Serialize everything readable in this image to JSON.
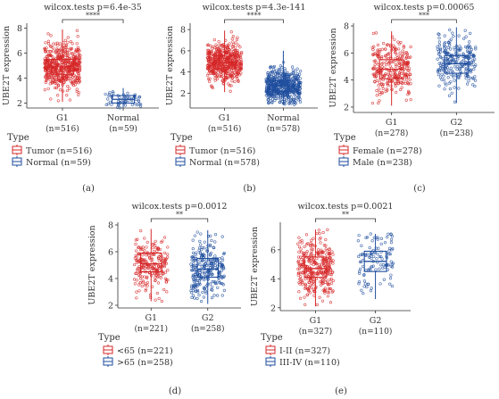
{
  "figure": {
    "panels_label": "(a) (b) (c) (d) (e)"
  },
  "colors": {
    "group1": "#d62728",
    "group2": "#1f4e9e",
    "axis": "#333333"
  },
  "chart_data": [
    {
      "type": "boxplot",
      "panel_label": "(a)",
      "title": "wilcox.tests p=6.4e-35",
      "ylabel": "UBE2T expression",
      "ylim": [
        1.6,
        8.4
      ],
      "yticks": [
        2,
        4,
        6,
        8
      ],
      "signif": "****",
      "legend_title": "Type",
      "categories": [
        {
          "name": "G1",
          "n_label": "(n=516)",
          "color": "#d62728",
          "n": 516,
          "min": 2.1,
          "q1": 4.3,
          "median": 4.9,
          "q3": 5.5,
          "max": 7.9
        },
        {
          "name": "Normal",
          "n_label": "(n=59)",
          "color": "#1f4e9e",
          "n": 59,
          "min": 1.6,
          "q1": 2.0,
          "median": 2.3,
          "q3": 2.6,
          "max": 3.2
        }
      ],
      "legend": [
        {
          "label": "Tumor (n=516)",
          "color": "#d62728"
        },
        {
          "label": "Normal (n=59)",
          "color": "#1f4e9e"
        }
      ]
    },
    {
      "type": "boxplot",
      "panel_label": "(b)",
      "title": "wilcox.tests p=4.3e-141",
      "ylabel": "UBE2T expression",
      "ylim": [
        0.6,
        8.6
      ],
      "yticks": [
        2,
        4,
        6,
        8
      ],
      "signif": "****",
      "legend_title": "Type",
      "categories": [
        {
          "name": "G1",
          "n_label": "(n=516)",
          "color": "#d62728",
          "n": 516,
          "min": 2.1,
          "q1": 4.3,
          "median": 4.9,
          "q3": 5.5,
          "max": 7.9
        },
        {
          "name": "Normal",
          "n_label": "(n=578)",
          "color": "#1f4e9e",
          "n": 578,
          "min": 0.9,
          "q1": 2.2,
          "median": 2.7,
          "q3": 3.2,
          "max": 6.0
        }
      ],
      "legend": [
        {
          "label": "Tumor (n=516)",
          "color": "#d62728"
        },
        {
          "label": "Normal (n=578)",
          "color": "#1f4e9e"
        }
      ]
    },
    {
      "type": "boxplot",
      "panel_label": "(c)",
      "title": "wilcox.tests p=0.00065",
      "ylabel": "UBE2T expression",
      "ylim": [
        1.6,
        8.2
      ],
      "yticks": [
        2,
        4,
        6,
        8
      ],
      "signif": "***",
      "legend_title": "Type",
      "categories": [
        {
          "name": "G1",
          "n_label": "(n=278)",
          "color": "#d62728",
          "n": 278,
          "min": 2.1,
          "q1": 4.1,
          "median": 4.8,
          "q3": 5.5,
          "max": 7.6
        },
        {
          "name": "G2",
          "n_label": "(n=238)",
          "color": "#1f4e9e",
          "n": 238,
          "min": 2.3,
          "q1": 4.5,
          "median": 5.2,
          "q3": 5.8,
          "max": 7.9
        }
      ],
      "legend": [
        {
          "label": "Female (n=278)",
          "color": "#d62728"
        },
        {
          "label": "Male (n=238)",
          "color": "#1f4e9e"
        }
      ]
    },
    {
      "type": "boxplot",
      "panel_label": "(d)",
      "title": "wilcox.tests p=0.0012",
      "ylabel": "UBE2T expression",
      "ylim": [
        1.8,
        8.2
      ],
      "yticks": [
        2,
        4,
        6,
        8
      ],
      "signif": "**",
      "legend_title": "Type",
      "categories": [
        {
          "name": "G1",
          "n_label": "(n=221)",
          "color": "#d62728",
          "n": 221,
          "min": 2.3,
          "q1": 4.5,
          "median": 5.1,
          "q3": 5.9,
          "max": 7.7
        },
        {
          "name": "G2",
          "n_label": "(n=258)",
          "color": "#1f4e9e",
          "n": 258,
          "min": 2.1,
          "q1": 4.1,
          "median": 4.7,
          "q3": 5.5,
          "max": 7.6
        }
      ],
      "legend": [
        {
          "label": "<65 (n=221)",
          "color": "#d62728"
        },
        {
          "label": ">65 (n=258)",
          "color": "#1f4e9e"
        }
      ]
    },
    {
      "type": "boxplot",
      "panel_label": "(e)",
      "title": "wilcox.tests p=0.0021",
      "ylabel": "UBE2T expression",
      "ylim": [
        1.8,
        7.9
      ],
      "yticks": [
        2,
        4,
        6
      ],
      "signif": "**",
      "legend_title": "Type",
      "categories": [
        {
          "name": "G1",
          "n_label": "(n=327)",
          "color": "#d62728",
          "n": 327,
          "min": 2.1,
          "q1": 4.1,
          "median": 4.7,
          "q3": 5.5,
          "max": 7.4
        },
        {
          "name": "G2",
          "n_label": "(n=110)",
          "color": "#1f4e9e",
          "n": 110,
          "min": 2.6,
          "q1": 4.5,
          "median": 5.2,
          "q3": 5.9,
          "max": 7.1
        }
      ],
      "legend": [
        {
          "label": "I-II (n=327)",
          "color": "#d62728"
        },
        {
          "label": "III-IV (n=110)",
          "color": "#1f4e9e"
        }
      ]
    }
  ]
}
